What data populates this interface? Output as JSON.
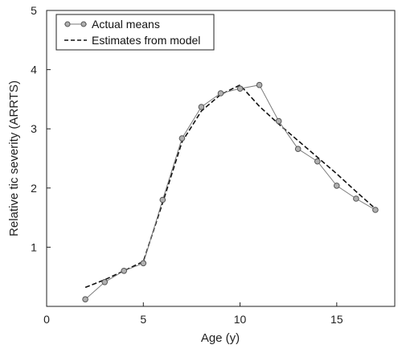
{
  "chart_data": {
    "type": "line",
    "xlabel": "Age (y)",
    "ylabel": "Relative tic severity (ARRTS)",
    "xlim": [
      0,
      18
    ],
    "ylim": [
      0,
      5
    ],
    "xticks": [
      0,
      5,
      10,
      15
    ],
    "yticks": [
      1,
      2,
      3,
      4,
      5
    ],
    "legend_position": "top-left",
    "series": [
      {
        "name": "Actual means",
        "style": "solid-with-circles",
        "x": [
          2,
          3,
          4,
          5,
          6,
          7,
          8,
          9,
          10,
          11,
          12,
          13,
          14,
          15,
          16,
          17
        ],
        "y": [
          0.12,
          0.41,
          0.6,
          0.73,
          1.8,
          2.84,
          3.37,
          3.6,
          3.68,
          3.74,
          3.13,
          2.66,
          2.45,
          2.04,
          1.82,
          1.63
        ]
      },
      {
        "name": "Estimates from model",
        "style": "dashed",
        "x": [
          2,
          3,
          4,
          5,
          6,
          7,
          8,
          9,
          10,
          11,
          12,
          13,
          14,
          15,
          16,
          17
        ],
        "y": [
          0.32,
          0.45,
          0.6,
          0.76,
          1.75,
          2.78,
          3.3,
          3.58,
          3.74,
          3.38,
          3.08,
          2.8,
          2.52,
          2.24,
          1.94,
          1.65
        ]
      }
    ]
  },
  "colors": {
    "marker_fill": "#b0b0b0",
    "line_actual": "#7a7a7a",
    "line_model": "#111111",
    "axis": "#222222"
  }
}
